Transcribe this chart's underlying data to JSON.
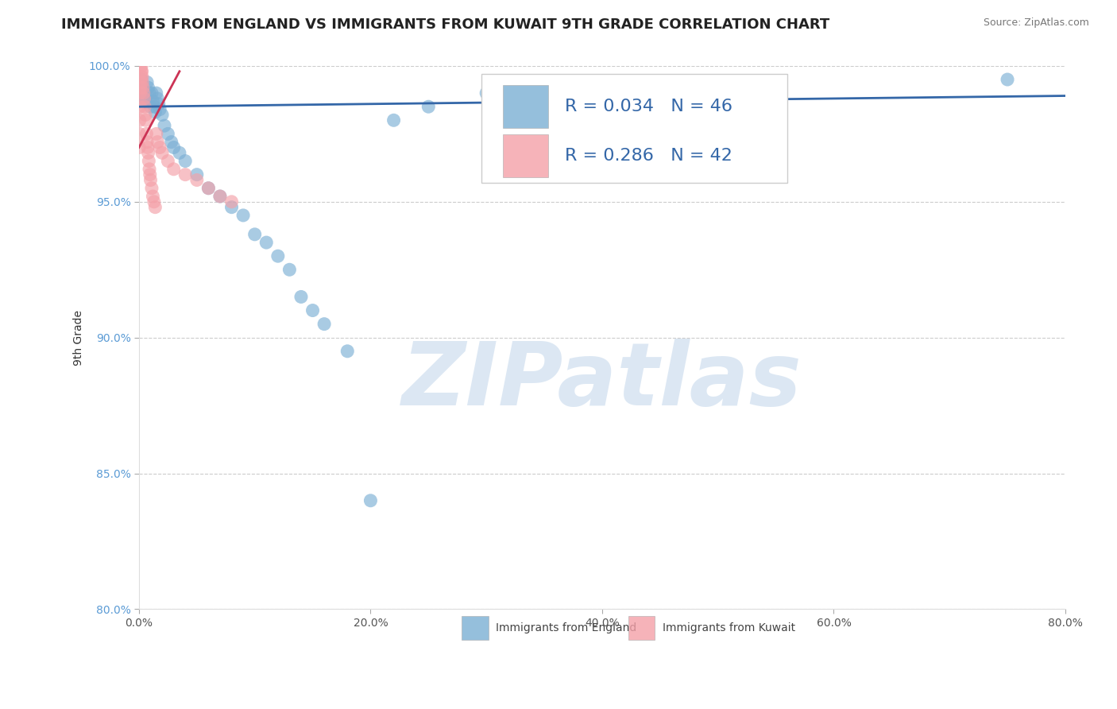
{
  "title": "IMMIGRANTS FROM ENGLAND VS IMMIGRANTS FROM KUWAIT 9TH GRADE CORRELATION CHART",
  "source_text": "Source: ZipAtlas.com",
  "ylabel": "9th Grade",
  "xlim": [
    0.0,
    80.0
  ],
  "ylim": [
    80.0,
    100.0
  ],
  "xticks": [
    0.0,
    20.0,
    40.0,
    60.0,
    80.0
  ],
  "yticks": [
    80.0,
    85.0,
    90.0,
    95.0,
    100.0
  ],
  "xticklabels": [
    "0.0%",
    "20.0%",
    "40.0%",
    "60.0%",
    "80.0%"
  ],
  "yticklabels": [
    "80.0%",
    "85.0%",
    "90.0%",
    "95.0%",
    "100.0%"
  ],
  "england_color": "#7BAFD4",
  "kuwait_color": "#F4A0A8",
  "england_R": 0.034,
  "england_N": 46,
  "kuwait_R": 0.286,
  "kuwait_N": 42,
  "england_scatter_x": [
    0.05,
    0.1,
    0.15,
    0.2,
    0.25,
    0.3,
    0.4,
    0.5,
    0.6,
    0.7,
    0.8,
    0.9,
    1.0,
    1.1,
    1.2,
    1.3,
    1.4,
    1.5,
    1.6,
    1.7,
    1.8,
    2.0,
    2.2,
    2.5,
    2.8,
    3.0,
    3.5,
    4.0,
    5.0,
    6.0,
    7.0,
    8.0,
    9.0,
    10.0,
    11.0,
    12.0,
    13.0,
    14.0,
    15.0,
    16.0,
    18.0,
    20.0,
    22.0,
    25.0,
    30.0,
    75.0
  ],
  "england_scatter_y": [
    99.0,
    99.2,
    98.8,
    99.5,
    99.3,
    99.1,
    99.0,
    98.8,
    98.7,
    99.4,
    99.2,
    99.0,
    98.5,
    99.0,
    98.7,
    98.5,
    98.3,
    99.0,
    98.8,
    98.6,
    98.4,
    98.2,
    97.8,
    97.5,
    97.2,
    97.0,
    96.8,
    96.5,
    96.0,
    95.5,
    95.2,
    94.8,
    94.5,
    93.8,
    93.5,
    93.0,
    92.5,
    91.5,
    91.0,
    90.5,
    89.5,
    84.0,
    98.0,
    98.5,
    99.0,
    99.5
  ],
  "kuwait_scatter_x": [
    0.02,
    0.04,
    0.06,
    0.08,
    0.1,
    0.12,
    0.15,
    0.18,
    0.2,
    0.22,
    0.25,
    0.28,
    0.3,
    0.35,
    0.4,
    0.45,
    0.5,
    0.55,
    0.6,
    0.65,
    0.7,
    0.75,
    0.8,
    0.85,
    0.9,
    0.95,
    1.0,
    1.1,
    1.2,
    1.3,
    1.4,
    1.5,
    1.6,
    1.8,
    2.0,
    2.5,
    3.0,
    4.0,
    5.0,
    6.0,
    7.0,
    8.0
  ],
  "kuwait_scatter_y": [
    97.0,
    97.5,
    98.0,
    98.5,
    99.0,
    99.2,
    99.4,
    99.6,
    99.8,
    100.0,
    99.8,
    99.6,
    99.4,
    99.2,
    99.0,
    98.8,
    98.5,
    98.2,
    98.0,
    97.5,
    97.2,
    97.0,
    96.8,
    96.5,
    96.2,
    96.0,
    95.8,
    95.5,
    95.2,
    95.0,
    94.8,
    97.5,
    97.2,
    97.0,
    96.8,
    96.5,
    96.2,
    96.0,
    95.8,
    95.5,
    95.2,
    95.0
  ],
  "england_trend_x": [
    0.0,
    80.0
  ],
  "england_trend_y": [
    98.5,
    98.9
  ],
  "kuwait_trend_x": [
    0.0,
    3.5
  ],
  "kuwait_trend_y": [
    97.0,
    99.8
  ],
  "watermark_text": "ZIPatlas",
  "watermark_color": "#C5D8EC",
  "legend_label_england": "Immigrants from England",
  "legend_label_kuwait": "Immigrants from Kuwait",
  "title_fontsize": 13,
  "axis_label_fontsize": 10,
  "tick_fontsize": 10,
  "background_color": "#FFFFFF",
  "grid_color": "#CCCCCC",
  "ytick_color": "#5B9BD5",
  "xtick_color": "#555555",
  "source_fontsize": 9,
  "england_trend_color": "#3467A8",
  "kuwait_trend_color": "#CC3355"
}
